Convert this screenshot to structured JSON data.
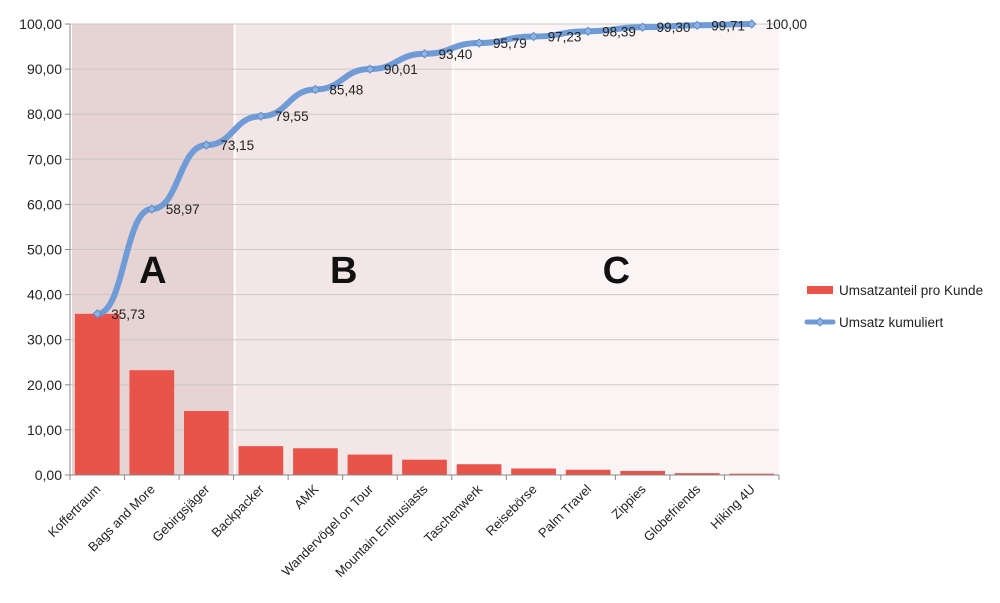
{
  "chart_data": {
    "type": "bar",
    "categories": [
      "Koffertraum",
      "Bags and More",
      "Gebirgsjäger",
      "Backpacker",
      "AMK",
      "Wandervögel on Tour",
      "Mountain Enthusiasts",
      "Taschenwerk",
      "Reisebörse",
      "Palm Travel",
      "Zippies",
      "Globefriends",
      "Hiking 4U"
    ],
    "series": [
      {
        "name": "Umsatzanteil pro Kunde",
        "type": "bar",
        "color": "#e8544a",
        "values": [
          35.73,
          23.24,
          14.18,
          6.4,
          5.93,
          4.53,
          3.39,
          2.39,
          1.44,
          1.16,
          0.91,
          0.41,
          0.29
        ]
      },
      {
        "name": "Umsatz kumuliert",
        "type": "line",
        "color": "#6f9bd6",
        "values": [
          35.73,
          58.97,
          73.15,
          79.55,
          85.48,
          90.01,
          93.4,
          95.79,
          97.23,
          98.39,
          99.3,
          99.71,
          100.0
        ],
        "data_labels": [
          "35,73",
          "58,97",
          "73,15",
          "79,55",
          "85,48",
          "90,01",
          "93,40",
          "95,79",
          "97,23",
          "98,39",
          "99,30",
          "99,71",
          "100,00"
        ]
      }
    ],
    "ylim": [
      0,
      100
    ],
    "yticks": [
      0,
      10,
      20,
      30,
      40,
      50,
      60,
      70,
      80,
      90,
      100
    ],
    "ytick_labels": [
      "0,00",
      "10,00",
      "20,00",
      "30,00",
      "40,00",
      "50,00",
      "60,00",
      "70,00",
      "80,00",
      "90,00",
      "100,00"
    ],
    "title": "",
    "xlabel": "",
    "ylabel": "",
    "grid": true,
    "legend_position": "right",
    "zones": [
      {
        "label": "A",
        "from_index": 0,
        "to_index": 2,
        "color": "#e6d3d3"
      },
      {
        "label": "B",
        "from_index": 3,
        "to_index": 6,
        "color": "#f3e6e7"
      },
      {
        "label": "C",
        "from_index": 7,
        "to_index": 12,
        "color": "#fbf4f5"
      }
    ]
  }
}
